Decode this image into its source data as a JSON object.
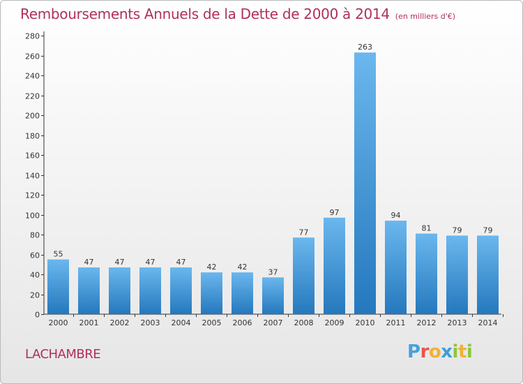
{
  "chart_data": {
    "type": "bar",
    "title": "Remboursements Annuels de la Dette de 2000 à 2014",
    "subtitle": "(en milliers d'€)",
    "categories": [
      "2000",
      "2001",
      "2002",
      "2003",
      "2004",
      "2005",
      "2006",
      "2007",
      "2008",
      "2009",
      "2010",
      "2011",
      "2012",
      "2013",
      "2014"
    ],
    "values": [
      55,
      47,
      47,
      47,
      47,
      42,
      42,
      37,
      77,
      97,
      263,
      94,
      81,
      79,
      79
    ],
    "ylim": [
      0,
      280
    ],
    "yticks": [
      0,
      20,
      40,
      60,
      80,
      100,
      120,
      140,
      160,
      180,
      200,
      220,
      240,
      260,
      280
    ],
    "grid": false,
    "xlabel": "",
    "ylabel": ""
  },
  "commune": "LACHAMBRE",
  "logo": {
    "letters": [
      "P",
      "r",
      "o",
      "x",
      "i",
      "t",
      "i"
    ],
    "colors": [
      "#4a9fdc",
      "#e8534a",
      "#f2b134",
      "#3aa0d8",
      "#8cc63f",
      "#f2b134",
      "#8cc63f"
    ]
  },
  "colors": {
    "bar_top": "#6bb7ee",
    "bar_bottom": "#2478bd",
    "title": "#b0305a"
  }
}
